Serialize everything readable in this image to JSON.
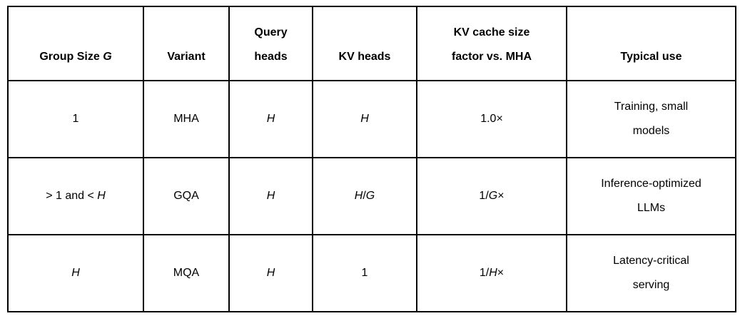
{
  "colors": {
    "background": "#ffffff",
    "border": "#000000",
    "text": "#000000"
  },
  "table": {
    "headers": [
      {
        "segments": [
          {
            "t": "Group Size "
          },
          {
            "t": "G",
            "i": true
          }
        ]
      },
      {
        "segments": [
          {
            "t": "Variant"
          }
        ]
      },
      {
        "segments": [
          {
            "t": "Query"
          },
          {
            "br": true
          },
          {
            "t": "heads"
          }
        ]
      },
      {
        "segments": [
          {
            "t": "KV heads"
          }
        ]
      },
      {
        "segments": [
          {
            "t": "KV cache size"
          },
          {
            "br": true
          },
          {
            "t": "factor vs. MHA"
          }
        ]
      },
      {
        "segments": [
          {
            "t": "Typical use"
          }
        ]
      }
    ],
    "rows": [
      [
        {
          "segments": [
            {
              "t": "1"
            }
          ]
        },
        {
          "segments": [
            {
              "t": "MHA"
            }
          ]
        },
        {
          "segments": [
            {
              "t": "H",
              "i": true
            }
          ]
        },
        {
          "segments": [
            {
              "t": "H",
              "i": true
            }
          ]
        },
        {
          "segments": [
            {
              "t": "1.0×"
            }
          ]
        },
        {
          "segments": [
            {
              "t": "Training, small"
            },
            {
              "br": true
            },
            {
              "t": "models"
            }
          ]
        }
      ],
      [
        {
          "segments": [
            {
              "t": "> 1 and < "
            },
            {
              "t": "H",
              "i": true
            }
          ]
        },
        {
          "segments": [
            {
              "t": "GQA"
            }
          ]
        },
        {
          "segments": [
            {
              "t": "H",
              "i": true
            }
          ]
        },
        {
          "segments": [
            {
              "t": "H",
              "i": true
            },
            {
              "t": "/"
            },
            {
              "t": "G",
              "i": true
            }
          ]
        },
        {
          "segments": [
            {
              "t": "1/"
            },
            {
              "t": "G",
              "i": true
            },
            {
              "t": "×"
            }
          ]
        },
        {
          "segments": [
            {
              "t": "Inference-optimized"
            },
            {
              "br": true
            },
            {
              "t": "LLMs"
            }
          ]
        }
      ],
      [
        {
          "segments": [
            {
              "t": "H",
              "i": true
            }
          ]
        },
        {
          "segments": [
            {
              "t": "MQA"
            }
          ]
        },
        {
          "segments": [
            {
              "t": "H",
              "i": true
            }
          ]
        },
        {
          "segments": [
            {
              "t": "1"
            }
          ]
        },
        {
          "segments": [
            {
              "t": "1/"
            },
            {
              "t": "H",
              "i": true
            },
            {
              "t": "×"
            }
          ]
        },
        {
          "segments": [
            {
              "t": "Latency-critical"
            },
            {
              "br": true
            },
            {
              "t": "serving"
            }
          ]
        }
      ]
    ]
  }
}
